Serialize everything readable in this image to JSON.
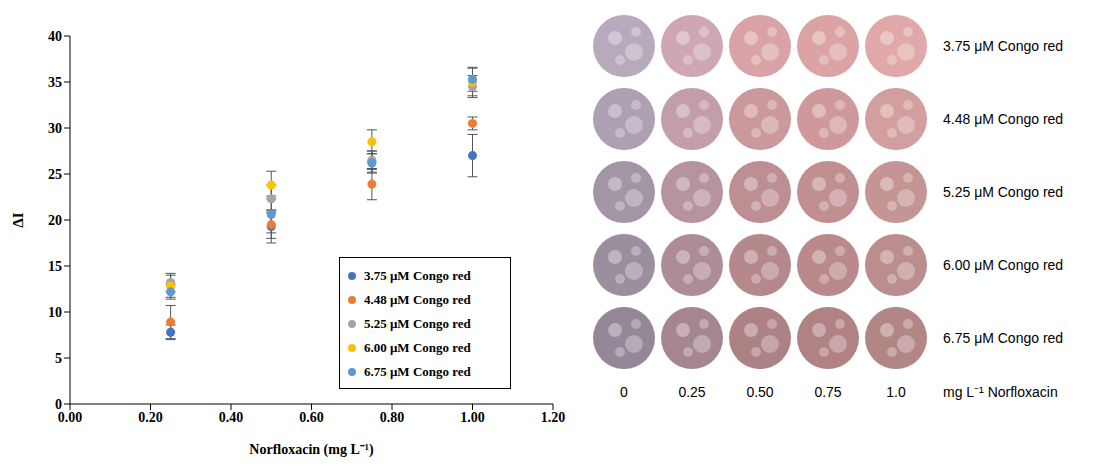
{
  "chart_data": {
    "type": "scatter",
    "xlabel": "Norfloxacin (mg L⁻¹)",
    "ylabel": "ΔI",
    "xlim": [
      0,
      1.2
    ],
    "xticks": [
      {
        "value": 0,
        "label": "0.00"
      },
      {
        "value": 0.2,
        "label": "0.20"
      },
      {
        "value": 0.4,
        "label": "0.40"
      },
      {
        "value": 0.6,
        "label": "0.60"
      },
      {
        "value": 0.8,
        "label": "0.80"
      },
      {
        "value": 1.0,
        "label": "1.00"
      },
      {
        "value": 1.2,
        "label": "1.20"
      }
    ],
    "ylim": [
      0,
      40
    ],
    "yticks": [
      0,
      5,
      10,
      15,
      20,
      25,
      30,
      35,
      40
    ],
    "grid": false,
    "legend": "lower right",
    "marker": "circle",
    "x": [
      0.25,
      0.5,
      0.75,
      1.0
    ],
    "series": [
      {
        "name": "3.75 μM Congo red",
        "color": "#4472c4",
        "values": [
          7.8,
          19.3,
          26.3,
          27.0
        ],
        "errors": [
          0.8,
          1.8,
          1.2,
          2.3
        ]
      },
      {
        "name": "4.48 μM Congo red",
        "color": "#ed7d31",
        "values": [
          8.9,
          19.5,
          23.9,
          30.5
        ],
        "errors": [
          1.8,
          1.5,
          1.7,
          0.7
        ]
      },
      {
        "name": "5.25 μM Congo red",
        "color": "#a5a5a5",
        "values": [
          13.2,
          22.3,
          26.5,
          34.5
        ],
        "errors": [
          1.0,
          1.5,
          1.0,
          1.2
        ]
      },
      {
        "name": "6.00 μM Congo red",
        "color": "#ffc000",
        "values": [
          12.8,
          23.8,
          28.5,
          35.0
        ],
        "errors": [
          1.2,
          1.5,
          1.3,
          1.5
        ]
      },
      {
        "name": "6.75 μM Congo red",
        "color": "#5b9bd5",
        "values": [
          12.2,
          20.6,
          26.2,
          35.3
        ],
        "errors": [
          0.8,
          2.0,
          1.0,
          1.3
        ]
      }
    ]
  },
  "photo_grid": {
    "rows": [
      "3.75 μM Congo red",
      "4.48 μM Congo red",
      "5.25 μM Congo red",
      "6.00 μM Congo red",
      "6.75 μM Congo red"
    ],
    "columns": [
      "0",
      "0.25",
      "0.50",
      "0.75",
      "1.0"
    ],
    "column_unit": "mg L⁻¹ Norfloxacin"
  }
}
